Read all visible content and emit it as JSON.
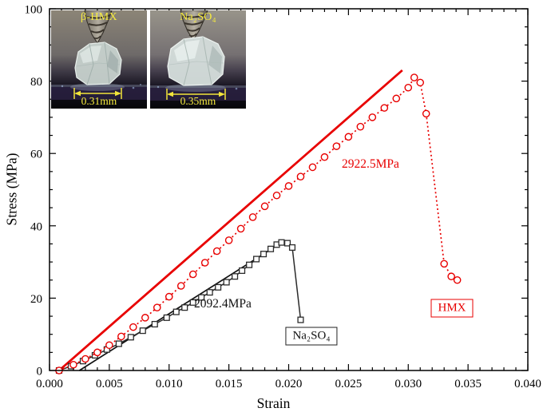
{
  "chart_data": {
    "type": "line",
    "title": "",
    "xlabel": "Strain",
    "ylabel": "Stress (MPa)",
    "xlim": [
      0.0,
      0.04
    ],
    "ylim": [
      0,
      100
    ],
    "grid": false,
    "legend_position": "none",
    "xticks": [
      "0.000",
      "0.005",
      "0.010",
      "0.015",
      "0.020",
      "0.025",
      "0.030",
      "0.035",
      "0.040"
    ],
    "xtick_values": [
      0,
      0.005,
      0.01,
      0.015,
      0.02,
      0.025,
      0.03,
      0.035,
      0.04
    ],
    "yticks": [
      "0",
      "20",
      "40",
      "60",
      "80",
      "100"
    ],
    "ytick_values": [
      0,
      20,
      40,
      60,
      80,
      100
    ],
    "x_minor_step": 0.001,
    "y_minor_step": 5,
    "series": [
      {
        "name": "Na2SO4 linear fit",
        "color": "#111111",
        "marker": "none",
        "line": "solid",
        "width": 1.7,
        "points": [
          [
            0.0025,
            0
          ],
          [
            0.019,
            34.5
          ]
        ]
      },
      {
        "name": "HMX linear fit",
        "color": "#e80000",
        "marker": "none",
        "line": "solid",
        "width": 2.8,
        "points": [
          [
            0.0008,
            0
          ],
          [
            0.0295,
            83
          ]
        ]
      },
      {
        "name": "Na2SO4 experimental",
        "color": "#2b2b2b",
        "marker": "square",
        "line": "solid",
        "width": 1.5,
        "points": [
          [
            0.0008,
            0
          ],
          [
            0.0018,
            1.2
          ],
          [
            0.0028,
            2.6
          ],
          [
            0.0038,
            4.2
          ],
          [
            0.0048,
            5.8
          ],
          [
            0.0058,
            7.4
          ],
          [
            0.0068,
            9.2
          ],
          [
            0.0078,
            11
          ],
          [
            0.0088,
            12.8
          ],
          [
            0.0098,
            14.6
          ],
          [
            0.0106,
            16.2
          ],
          [
            0.0113,
            17.4
          ],
          [
            0.012,
            18.8
          ],
          [
            0.0127,
            20.2
          ],
          [
            0.0134,
            21.6
          ],
          [
            0.0141,
            23
          ],
          [
            0.0148,
            24.4
          ],
          [
            0.0155,
            26
          ],
          [
            0.0161,
            27.6
          ],
          [
            0.0167,
            29.2
          ],
          [
            0.0173,
            30.8
          ],
          [
            0.0179,
            32.2
          ],
          [
            0.0185,
            33.6
          ],
          [
            0.019,
            34.8
          ],
          [
            0.0194,
            35.4
          ],
          [
            0.0199,
            35.2
          ],
          [
            0.0203,
            34
          ],
          [
            0.021,
            14
          ]
        ]
      },
      {
        "name": "HMX experimental",
        "color": "#e80000",
        "marker": "circle",
        "line": "dotted",
        "width": 1.7,
        "points": [
          [
            0.0008,
            0
          ],
          [
            0.002,
            1.6
          ],
          [
            0.003,
            3.2
          ],
          [
            0.004,
            5
          ],
          [
            0.005,
            7
          ],
          [
            0.006,
            9.4
          ],
          [
            0.007,
            12
          ],
          [
            0.008,
            14.6
          ],
          [
            0.009,
            17.4
          ],
          [
            0.01,
            20.4
          ],
          [
            0.011,
            23.4
          ],
          [
            0.012,
            26.6
          ],
          [
            0.013,
            29.8
          ],
          [
            0.014,
            33
          ],
          [
            0.015,
            36
          ],
          [
            0.016,
            39.2
          ],
          [
            0.017,
            42.4
          ],
          [
            0.018,
            45.4
          ],
          [
            0.019,
            48.4
          ],
          [
            0.02,
            51
          ],
          [
            0.021,
            53.6
          ],
          [
            0.022,
            56.2
          ],
          [
            0.023,
            59
          ],
          [
            0.024,
            62
          ],
          [
            0.025,
            64.6
          ],
          [
            0.026,
            67.4
          ],
          [
            0.027,
            70
          ],
          [
            0.028,
            72.6
          ],
          [
            0.029,
            75.2
          ],
          [
            0.03,
            78.2
          ],
          [
            0.0305,
            81
          ],
          [
            0.031,
            79.6
          ],
          [
            0.0315,
            71
          ],
          [
            0.033,
            29.5
          ],
          [
            0.0336,
            26
          ],
          [
            0.0341,
            25
          ]
        ]
      }
    ],
    "annotations": {
      "hmx_modulus": {
        "text": "2922.5MPa",
        "color": "#e80000"
      },
      "na2so4_modulus": {
        "text": "2092.4MPa",
        "color": "#111111"
      },
      "hmx_label": {
        "text": "HMX",
        "color": "#e80000",
        "boxed": true
      },
      "na2so4_label": {
        "text": "Na₂SO₄",
        "color": "#111111",
        "boxed": true
      }
    }
  },
  "inset": {
    "label_color": "#f7ec3e",
    "left_photo": {
      "label": "β-HMX",
      "scale": "0.31mm"
    },
    "right_photo": {
      "label": "Na₂SO₄",
      "scale": "0.35mm"
    }
  }
}
